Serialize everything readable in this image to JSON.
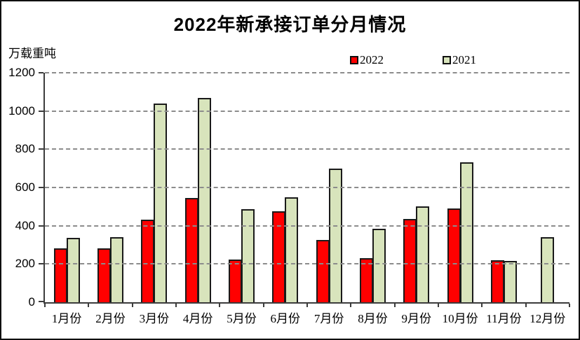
{
  "title": "2022年新承接订单分月情况",
  "y_axis_unit": "万载重吨",
  "legend": {
    "items": [
      {
        "label": "2022",
        "color": "#ff0000"
      },
      {
        "label": "2021",
        "color": "#d8e4bc"
      }
    ]
  },
  "colors": {
    "bar_border": "#1a1a1a",
    "axis": "#3c3c3c",
    "gridline": "#8c8c8c",
    "background": "#ffffff",
    "frame_border": "#0f0f0f"
  },
  "chart_data": {
    "type": "bar",
    "title": "2022年新承接订单分月情况",
    "xlabel": "",
    "ylabel": "万载重吨",
    "categories": [
      "1月份",
      "2月份",
      "3月份",
      "4月份",
      "5月份",
      "6月份",
      "7月份",
      "8月份",
      "9月份",
      "10月份",
      "11月份",
      "12月份"
    ],
    "series": [
      {
        "name": "2022",
        "color": "#ff0000",
        "values": [
          280,
          280,
          430,
          545,
          225,
          475,
          325,
          230,
          435,
          490,
          220,
          0
        ]
      },
      {
        "name": "2021",
        "color": "#d8e4bc",
        "values": [
          335,
          340,
          1040,
          1070,
          485,
          550,
          700,
          385,
          500,
          730,
          215,
          340
        ]
      }
    ],
    "ylim": [
      0,
      1200
    ],
    "yticks": [
      0,
      200,
      400,
      600,
      800,
      1000,
      1200
    ],
    "grid": "horizontal-dashed",
    "legend_position": "top-center"
  }
}
